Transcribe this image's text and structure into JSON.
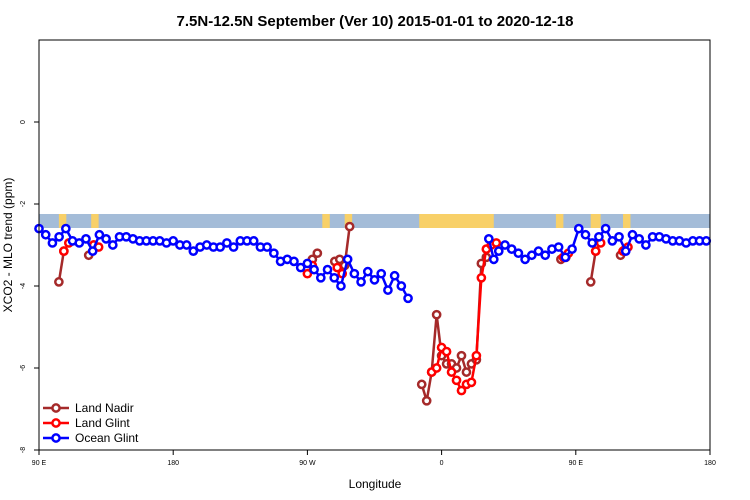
{
  "chart_data": {
    "type": "line",
    "title": "7.5N-12.5N September (Ver 10)   2015-01-01 to 2020-12-18",
    "xlabel": "Longitude",
    "ylabel": "XCO2 - MLO trend (ppm)",
    "xlim": [
      -90,
      180
    ],
    "ylim": [
      -8,
      2
    ],
    "x_ticks": [
      {
        "value": -90,
        "label": "90 E"
      },
      {
        "value": -36,
        "label": "180"
      },
      {
        "value": 18,
        "label": "90 W"
      },
      {
        "value": 72,
        "label": "0"
      },
      {
        "value": 126,
        "label": "90 E"
      },
      {
        "value": 180,
        "label": "180"
      }
    ],
    "y_ticks": [
      {
        "value": 0,
        "label": "0"
      },
      {
        "value": -2,
        "label": "-2"
      },
      {
        "value": -4,
        "label": "-4"
      },
      {
        "value": -6,
        "label": "-6"
      },
      {
        "value": -8,
        "label": "-8"
      }
    ],
    "legend_position": "bottom-left",
    "colors": {
      "land_band": "#f8d068",
      "ocean_band": "#a4bcd8"
    },
    "series": [
      {
        "name": "Land Nadir",
        "color": "#a52a2a",
        "segments": [
          [
            [
              -82,
              -3.9
            ],
            [
              -80,
              -3.15
            ]
          ],
          [
            [
              -70,
              -3.25
            ],
            [
              -68,
              -3.0
            ]
          ],
          [
            [
              20,
              -3.35
            ],
            [
              22,
              -3.2
            ]
          ],
          [
            [
              29,
              -3.4
            ],
            [
              31,
              -3.35
            ],
            [
              33,
              -3.5
            ],
            [
              35,
              -2.55
            ]
          ],
          [
            [
              64,
              -6.4
            ],
            [
              66,
              -6.8
            ],
            [
              68,
              -6.1
            ],
            [
              70,
              -4.7
            ],
            [
              72,
              -5.7
            ],
            [
              74,
              -5.9
            ],
            [
              76,
              -5.9
            ],
            [
              78,
              -6.0
            ],
            [
              80,
              -5.7
            ],
            [
              82,
              -6.1
            ],
            [
              84,
              -5.9
            ]
          ],
          [
            [
              86,
              -5.8
            ],
            [
              88,
              -3.45
            ],
            [
              90,
              -3.3
            ]
          ],
          [
            [
              120,
              -3.35
            ],
            [
              122,
              -3.3
            ]
          ],
          [
            [
              132,
              -3.9
            ],
            [
              134,
              -3.15
            ]
          ],
          [
            [
              144,
              -3.25
            ],
            [
              146,
              -3.1
            ]
          ]
        ]
      },
      {
        "name": "Land Glint",
        "color": "#ff0000",
        "segments": [
          [
            [
              -80,
              -3.15
            ],
            [
              -78,
              -2.95
            ]
          ],
          [
            [
              -68,
              -3.0
            ],
            [
              -66,
              -3.05
            ]
          ],
          [
            [
              18,
              -3.7
            ],
            [
              20,
              -3.5
            ]
          ],
          [
            [
              30,
              -3.55
            ],
            [
              32,
              -3.7
            ]
          ],
          [
            [
              68,
              -6.1
            ],
            [
              70,
              -6.0
            ],
            [
              72,
              -5.5
            ],
            [
              74,
              -5.6
            ],
            [
              76,
              -6.1
            ],
            [
              78,
              -6.3
            ],
            [
              80,
              -6.55
            ],
            [
              82,
              -6.4
            ],
            [
              84,
              -6.35
            ],
            [
              86,
              -5.7
            ],
            [
              88,
              -3.8
            ],
            [
              90,
              -3.1
            ],
            [
              92,
              -3.0
            ],
            [
              94,
              -2.95
            ]
          ],
          [
            [
              121,
              -3.3
            ],
            [
              123,
              -3.2
            ]
          ],
          [
            [
              134,
              -3.15
            ],
            [
              136,
              -2.95
            ]
          ],
          [
            [
              145,
              -3.15
            ],
            [
              147,
              -3.05
            ]
          ]
        ]
      },
      {
        "name": "Ocean Glint",
        "color": "#0000ff",
        "segments": [
          [
            [
              -90,
              -2.6
            ],
            [
              -87.3,
              -2.75
            ],
            [
              -84.6,
              -2.95
            ],
            [
              -81.9,
              -2.8
            ],
            [
              -79.2,
              -2.6
            ],
            [
              -76.5,
              -2.9
            ],
            [
              -73.8,
              -2.95
            ],
            [
              -71.1,
              -2.85
            ],
            [
              -68.4,
              -3.15
            ],
            [
              -65.7,
              -2.75
            ],
            [
              -63,
              -2.85
            ],
            [
              -60.3,
              -3.0
            ],
            [
              -57.6,
              -2.8
            ],
            [
              -54.9,
              -2.8
            ],
            [
              -52.2,
              -2.85
            ],
            [
              -49.5,
              -2.9
            ],
            [
              -46.8,
              -2.9
            ],
            [
              -44.1,
              -2.9
            ],
            [
              -41.4,
              -2.9
            ],
            [
              -38.7,
              -2.95
            ],
            [
              -36,
              -2.9
            ],
            [
              -33.3,
              -3.0
            ],
            [
              -30.6,
              -3.0
            ],
            [
              -27.9,
              -3.15
            ],
            [
              -25.2,
              -3.05
            ],
            [
              -22.5,
              -3.0
            ],
            [
              -19.8,
              -3.05
            ],
            [
              -17.1,
              -3.05
            ],
            [
              -14.4,
              -2.95
            ],
            [
              -11.7,
              -3.05
            ],
            [
              -9,
              -2.9
            ],
            [
              -6.3,
              -2.9
            ],
            [
              -3.6,
              -2.9
            ],
            [
              -0.9,
              -3.05
            ],
            [
              1.8,
              -3.05
            ],
            [
              4.5,
              -3.2
            ],
            [
              7.2,
              -3.4
            ],
            [
              9.9,
              -3.35
            ],
            [
              12.6,
              -3.4
            ],
            [
              15.3,
              -3.55
            ],
            [
              18,
              -3.45
            ],
            [
              20.7,
              -3.6
            ],
            [
              23.4,
              -3.8
            ],
            [
              26.1,
              -3.6
            ],
            [
              28.8,
              -3.8
            ],
            [
              31.5,
              -4.0
            ],
            [
              34.2,
              -3.35
            ],
            [
              36.9,
              -3.7
            ],
            [
              39.6,
              -3.9
            ],
            [
              42.3,
              -3.65
            ],
            [
              45,
              -3.85
            ],
            [
              47.7,
              -3.7
            ],
            [
              50.4,
              -4.1
            ],
            [
              53.1,
              -3.75
            ],
            [
              55.8,
              -4.0
            ],
            [
              58.5,
              -4.3
            ]
          ],
          [
            [
              91,
              -2.85
            ],
            [
              93,
              -3.35
            ],
            [
              95,
              -3.15
            ],
            [
              97.5,
              -3.0
            ],
            [
              100.2,
              -3.1
            ],
            [
              102.9,
              -3.2
            ],
            [
              105.6,
              -3.35
            ],
            [
              108.3,
              -3.25
            ],
            [
              111,
              -3.15
            ],
            [
              113.7,
              -3.25
            ],
            [
              116.4,
              -3.1
            ],
            [
              119.1,
              -3.05
            ],
            [
              121.8,
              -3.3
            ],
            [
              124.5,
              -3.1
            ],
            [
              127.2,
              -2.6
            ],
            [
              129.9,
              -2.75
            ],
            [
              132.6,
              -2.95
            ],
            [
              135.3,
              -2.8
            ],
            [
              138,
              -2.6
            ],
            [
              140.7,
              -2.9
            ],
            [
              143.4,
              -2.8
            ],
            [
              146.1,
              -3.15
            ],
            [
              148.8,
              -2.75
            ],
            [
              151.5,
              -2.85
            ],
            [
              154.2,
              -3.0
            ],
            [
              156.9,
              -2.8
            ],
            [
              159.6,
              -2.8
            ],
            [
              162.3,
              -2.85
            ],
            [
              165,
              -2.9
            ],
            [
              167.7,
              -2.9
            ],
            [
              170.4,
              -2.95
            ],
            [
              173.1,
              -2.9
            ],
            [
              175.8,
              -2.9
            ],
            [
              178.5,
              -2.9
            ]
          ]
        ]
      }
    ]
  }
}
